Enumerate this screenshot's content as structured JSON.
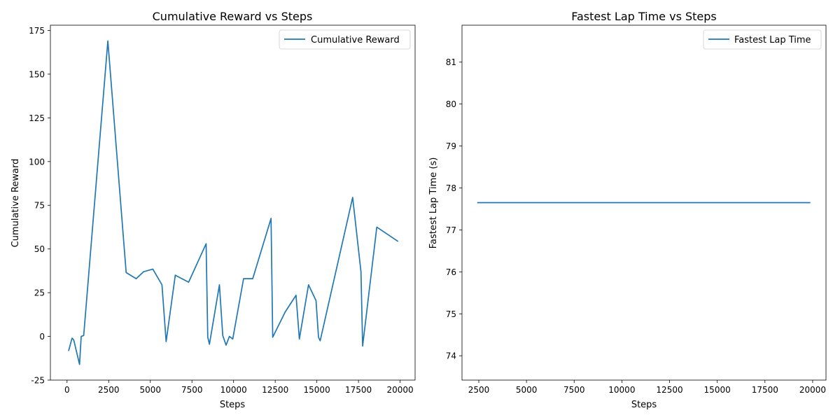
{
  "chart_data": [
    {
      "type": "line",
      "title": "Cumulative Reward vs Steps",
      "xlabel": "Steps",
      "ylabel": "Cumulative Reward",
      "xlim": [
        -1000,
        20900
      ],
      "ylim": [
        -25,
        178
      ],
      "xticks": [
        0,
        2500,
        5000,
        7500,
        10000,
        12500,
        15000,
        17500,
        20000
      ],
      "yticks": [
        -25,
        0,
        25,
        50,
        75,
        100,
        125,
        150,
        175
      ],
      "legend_position": "upper right",
      "grid": false,
      "series": [
        {
          "name": "Cumulative Reward",
          "color": "#1f77b4",
          "x": [
            100,
            300,
            400,
            750,
            850,
            1000,
            2450,
            3550,
            4150,
            4600,
            5150,
            5700,
            5950,
            6500,
            7300,
            8350,
            8450,
            8550,
            9150,
            9350,
            9550,
            9750,
            9950,
            10600,
            11150,
            12250,
            12350,
            13100,
            13750,
            13950,
            14500,
            14950,
            15100,
            15200,
            17150,
            17650,
            17750,
            18600,
            19850
          ],
          "y": [
            -8,
            -1,
            -2,
            -16,
            0,
            0.5,
            169,
            36.5,
            33,
            37,
            38.5,
            29.5,
            -3,
            35,
            31,
            53,
            -0.5,
            -4.5,
            29.5,
            0.5,
            -5,
            0,
            -1.5,
            33,
            33,
            67.5,
            -0.5,
            14,
            23.5,
            -1.5,
            29.5,
            20.5,
            -0.5,
            -2.5,
            79.5,
            37,
            -5.5,
            62.5,
            54.5
          ]
        }
      ]
    },
    {
      "type": "line",
      "title": "Fastest Lap Time vs Steps",
      "xlabel": "Steps",
      "ylabel": "Fastest Lap Time (s)",
      "xlim": [
        1620,
        20700
      ],
      "ylim": [
        73.42,
        81.88
      ],
      "xticks": [
        2500,
        5000,
        7500,
        10000,
        12500,
        15000,
        17500,
        20000
      ],
      "yticks": [
        74,
        75,
        76,
        77,
        78,
        79,
        80,
        81
      ],
      "legend_position": "upper right",
      "grid": false,
      "series": [
        {
          "name": "Fastest Lap Time",
          "color": "#1f77b4",
          "x": [
            2450,
            19850
          ],
          "y": [
            77.65,
            77.65
          ]
        }
      ]
    }
  ]
}
